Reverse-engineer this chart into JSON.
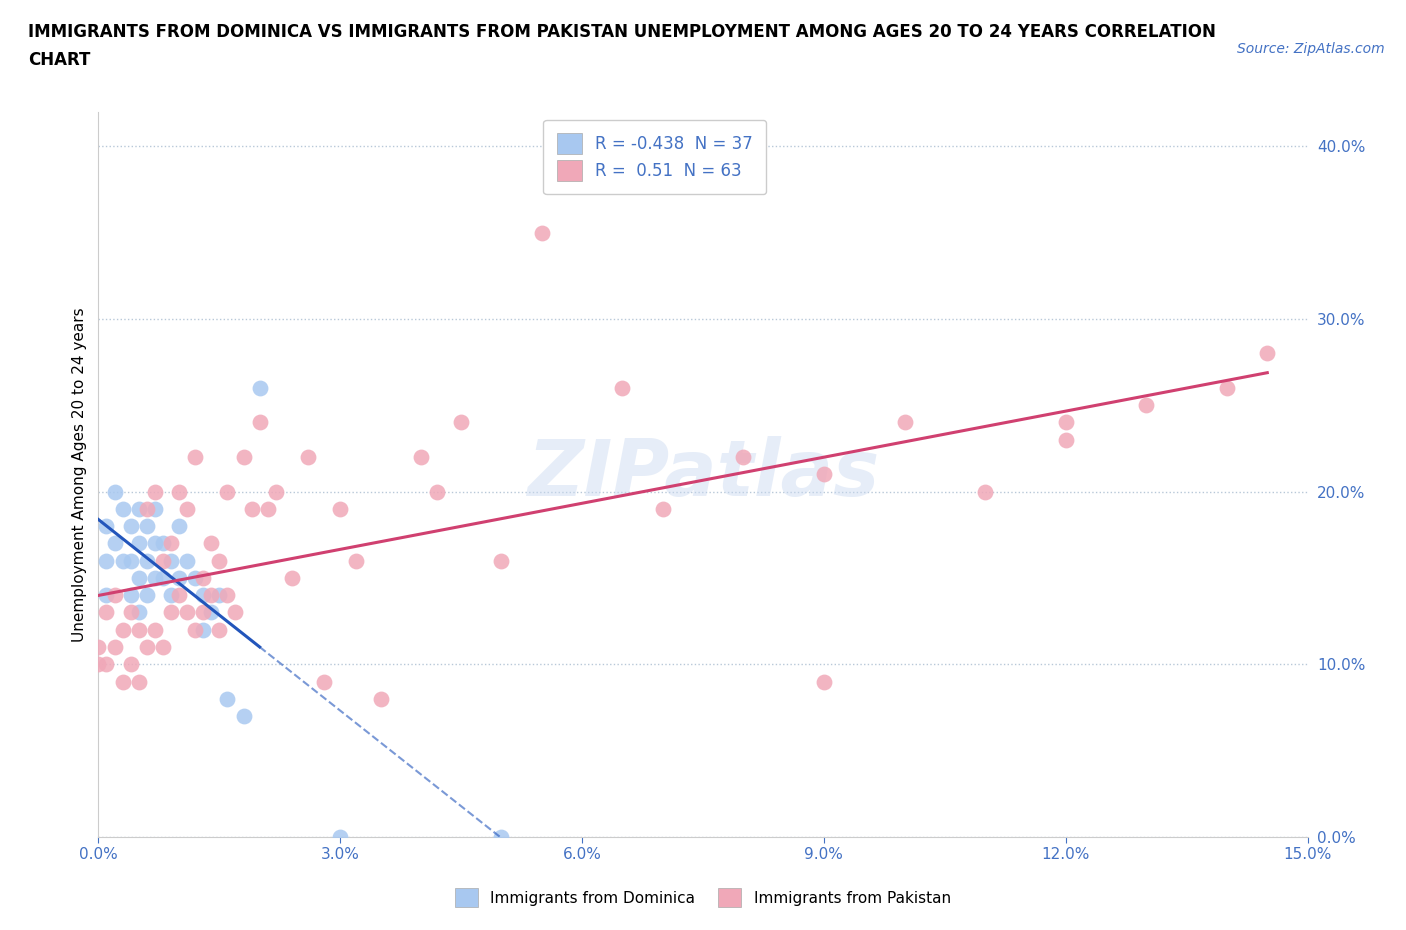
{
  "title": "IMMIGRANTS FROM DOMINICA VS IMMIGRANTS FROM PAKISTAN UNEMPLOYMENT AMONG AGES 20 TO 24 YEARS CORRELATION\nCHART",
  "source": "Source: ZipAtlas.com",
  "ylabel": "Unemployment Among Ages 20 to 24 years",
  "xlim": [
    0.0,
    0.15
  ],
  "ylim": [
    0.0,
    0.42
  ],
  "xticks": [
    0.0,
    0.03,
    0.06,
    0.09,
    0.12,
    0.15
  ],
  "ytick_right_values": [
    0.0,
    0.1,
    0.2,
    0.3,
    0.4
  ],
  "dominica_R": -0.438,
  "dominica_N": 37,
  "pakistan_R": 0.51,
  "pakistan_N": 63,
  "dominica_color": "#a8c8f0",
  "pakistan_color": "#f0a8b8",
  "dominica_line_color": "#2255bb",
  "pakistan_line_color": "#d04070",
  "watermark": "ZIPatlas",
  "dominica_x": [
    0.001,
    0.001,
    0.001,
    0.002,
    0.002,
    0.003,
    0.003,
    0.004,
    0.004,
    0.004,
    0.005,
    0.005,
    0.005,
    0.005,
    0.006,
    0.006,
    0.006,
    0.007,
    0.007,
    0.007,
    0.008,
    0.008,
    0.009,
    0.009,
    0.01,
    0.01,
    0.011,
    0.012,
    0.013,
    0.013,
    0.014,
    0.015,
    0.016,
    0.018,
    0.02,
    0.03,
    0.05
  ],
  "dominica_y": [
    0.18,
    0.16,
    0.14,
    0.2,
    0.17,
    0.19,
    0.16,
    0.18,
    0.16,
    0.14,
    0.19,
    0.17,
    0.15,
    0.13,
    0.18,
    0.16,
    0.14,
    0.19,
    0.17,
    0.15,
    0.17,
    0.15,
    0.16,
    0.14,
    0.18,
    0.15,
    0.16,
    0.15,
    0.14,
    0.12,
    0.13,
    0.14,
    0.08,
    0.07,
    0.26,
    0.0,
    0.0
  ],
  "pakistan_x": [
    0.0,
    0.0,
    0.001,
    0.001,
    0.002,
    0.002,
    0.003,
    0.003,
    0.004,
    0.004,
    0.005,
    0.005,
    0.006,
    0.006,
    0.007,
    0.007,
    0.008,
    0.008,
    0.009,
    0.009,
    0.01,
    0.01,
    0.011,
    0.011,
    0.012,
    0.012,
    0.013,
    0.013,
    0.014,
    0.014,
    0.015,
    0.015,
    0.016,
    0.016,
    0.017,
    0.018,
    0.019,
    0.02,
    0.021,
    0.022,
    0.024,
    0.026,
    0.028,
    0.03,
    0.032,
    0.035,
    0.04,
    0.042,
    0.045,
    0.055,
    0.065,
    0.07,
    0.08,
    0.09,
    0.1,
    0.11,
    0.12,
    0.13,
    0.14,
    0.145,
    0.12,
    0.09,
    0.05
  ],
  "pakistan_y": [
    0.1,
    0.11,
    0.1,
    0.13,
    0.11,
    0.14,
    0.09,
    0.12,
    0.1,
    0.13,
    0.09,
    0.12,
    0.11,
    0.19,
    0.12,
    0.2,
    0.11,
    0.16,
    0.13,
    0.17,
    0.14,
    0.2,
    0.13,
    0.19,
    0.12,
    0.22,
    0.13,
    0.15,
    0.14,
    0.17,
    0.12,
    0.16,
    0.14,
    0.2,
    0.13,
    0.22,
    0.19,
    0.24,
    0.19,
    0.2,
    0.15,
    0.22,
    0.09,
    0.19,
    0.16,
    0.08,
    0.22,
    0.2,
    0.24,
    0.35,
    0.26,
    0.19,
    0.22,
    0.21,
    0.24,
    0.2,
    0.23,
    0.25,
    0.26,
    0.28,
    0.24,
    0.09,
    0.16
  ]
}
